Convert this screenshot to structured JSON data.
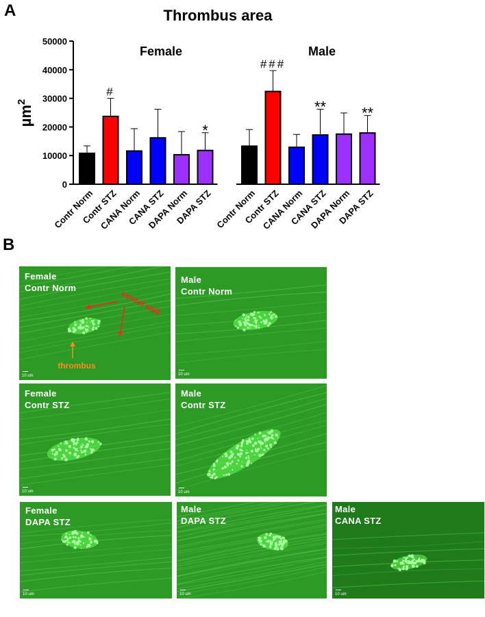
{
  "panel_a": {
    "letter": "A"
  },
  "panel_b": {
    "letter": "B"
  },
  "chart_data": {
    "type": "bar",
    "title": "Thrombus area",
    "ylabel": "µm²",
    "ylabel_main": "µm",
    "ylabel_sup": "2",
    "ylim": [
      0,
      50000
    ],
    "yticks": [
      "0",
      "10000",
      "20000",
      "30000",
      "40000",
      "50000"
    ],
    "tick_values": [
      0,
      10000,
      20000,
      30000,
      40000,
      50000
    ],
    "grid": false,
    "groups": [
      {
        "name": "Female",
        "bars": [
          {
            "category": "Contr Norm",
            "value": 10800,
            "error": 2600,
            "color": "#000000",
            "annotation": ""
          },
          {
            "category": "Contr STZ",
            "value": 23700,
            "error": 6300,
            "color": "#ff0000",
            "annotation": "#"
          },
          {
            "category": "CANA Norm",
            "value": 11600,
            "error": 7800,
            "color": "#0000ff",
            "annotation": ""
          },
          {
            "category": "CANA STZ",
            "value": 16200,
            "error": 10000,
            "color": "#0000ff",
            "annotation": ""
          },
          {
            "category": "DAPA Norm",
            "value": 10300,
            "error": 8100,
            "color": "#9b30ff",
            "annotation": ""
          },
          {
            "category": "DAPA STZ",
            "value": 11800,
            "error": 6200,
            "color": "#9b30ff",
            "annotation": "*"
          }
        ]
      },
      {
        "name": "Male",
        "bars": [
          {
            "category": "Contr Norm",
            "value": 13300,
            "error": 5800,
            "color": "#000000",
            "annotation": ""
          },
          {
            "category": "Contr STZ",
            "value": 32400,
            "error": 7300,
            "color": "#ff0000",
            "annotation": "###"
          },
          {
            "category": "CANA Norm",
            "value": 12900,
            "error": 4500,
            "color": "#0000ff",
            "annotation": ""
          },
          {
            "category": "CANA STZ",
            "value": 17200,
            "error": 9000,
            "color": "#0000ff",
            "annotation": "**"
          },
          {
            "category": "DAPA Norm",
            "value": 17500,
            "error": 7400,
            "color": "#9b30ff",
            "annotation": ""
          },
          {
            "category": "DAPA STZ",
            "value": 17900,
            "error": 6100,
            "color": "#9b30ff",
            "annotation": "**"
          }
        ]
      }
    ]
  },
  "images": [
    {
      "label_line1": "Female",
      "label_line2": "Contr Norm",
      "scale": "10 um"
    },
    {
      "label_line1": "Male",
      "label_line2": "Contr Norm",
      "scale": "10 um"
    },
    {
      "label_line1": "Female",
      "label_line2": "Contr STZ",
      "scale": "10 um"
    },
    {
      "label_line1": "Male",
      "label_line2": "Contr STZ",
      "scale": "10 um"
    },
    {
      "label_line1": "Female",
      "label_line2": "DAPA STZ",
      "scale": "10 um"
    },
    {
      "label_line1": "Male",
      "label_line2": "DAPA STZ",
      "scale": "10 um"
    },
    {
      "label_line1": "Male",
      "label_line2": "CANA STZ",
      "scale": "10 um"
    }
  ],
  "annotations": {
    "vessel_wall": "vessel wall",
    "thrombus": "thrombus",
    "vessel_wall_color": "#ff2020",
    "thrombus_color": "#ff8c1a"
  },
  "colors": {
    "background_green": "#2e9a26",
    "thrombus_green": "#66ff55"
  }
}
